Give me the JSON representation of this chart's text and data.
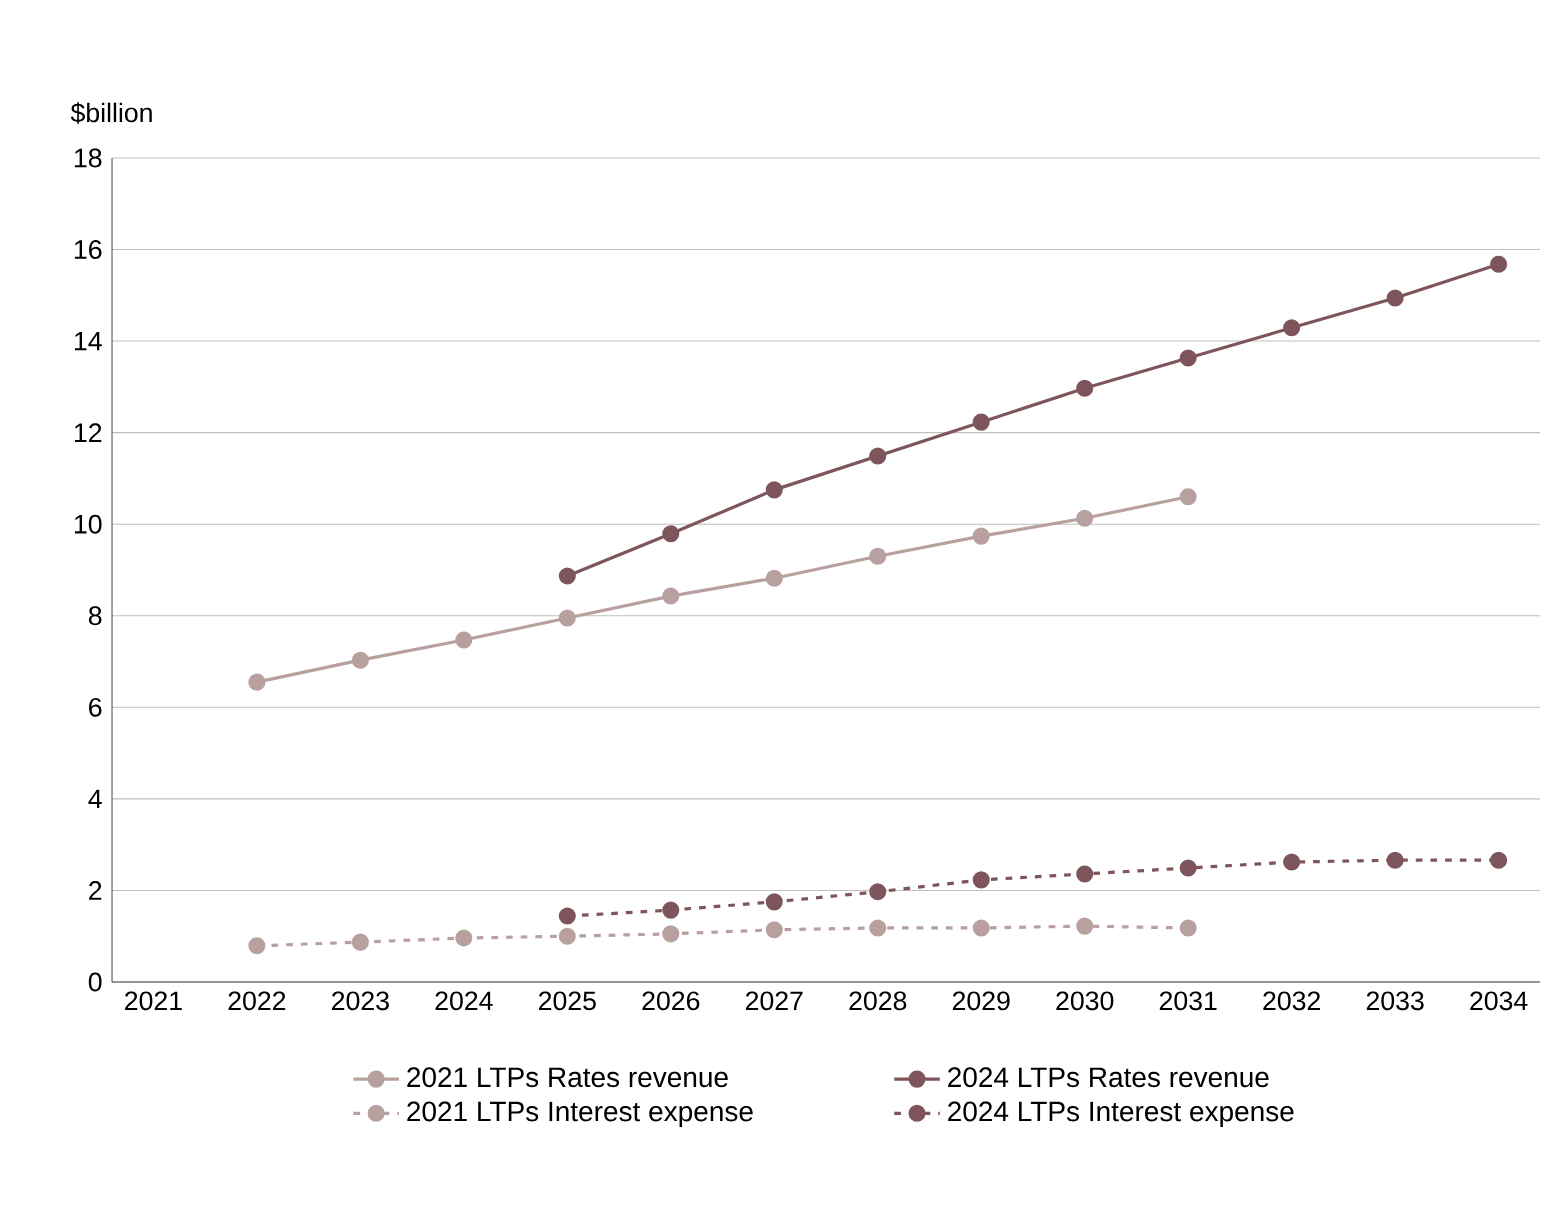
{
  "chart_data": {
    "type": "line",
    "ylabel": "$billion",
    "categories": [
      "2021",
      "2022",
      "2023",
      "2024",
      "2025",
      "2026",
      "2027",
      "2028",
      "2029",
      "2030",
      "2031",
      "2032",
      "2033",
      "2034"
    ],
    "series": [
      {
        "name": "2021 LTPs Rates revenue",
        "color": "#b8a09f",
        "line_style": "solid",
        "values": [
          null,
          6.55,
          7.03,
          7.47,
          7.95,
          8.43,
          8.82,
          9.3,
          9.74,
          10.13,
          10.6,
          null,
          null,
          null
        ]
      },
      {
        "name": "2024 LTPs Rates revenue",
        "color": "#7d555b",
        "line_style": "solid",
        "values": [
          null,
          null,
          null,
          null,
          8.87,
          9.79,
          10.75,
          11.49,
          12.23,
          12.97,
          13.63,
          14.29,
          14.94,
          15.68
        ]
      },
      {
        "name": "2021 LTPs Interest expense",
        "color": "#b8a09f",
        "line_style": "dashed",
        "values": [
          null,
          0.79,
          0.87,
          0.96,
          1.0,
          1.05,
          1.14,
          1.18,
          1.18,
          1.22,
          1.18,
          null,
          null,
          null
        ]
      },
      {
        "name": "2024 LTPs Interest expense",
        "color": "#7d555b",
        "line_style": "dashed",
        "values": [
          null,
          null,
          null,
          null,
          1.44,
          1.57,
          1.75,
          1.97,
          2.23,
          2.36,
          2.49,
          2.62,
          2.66,
          2.66
        ]
      }
    ],
    "ylim": [
      0,
      18
    ],
    "yticks": [
      0,
      2,
      4,
      6,
      8,
      10,
      12,
      14,
      16,
      18
    ],
    "grid": "y",
    "legend": "bottom",
    "marker": "circle"
  }
}
